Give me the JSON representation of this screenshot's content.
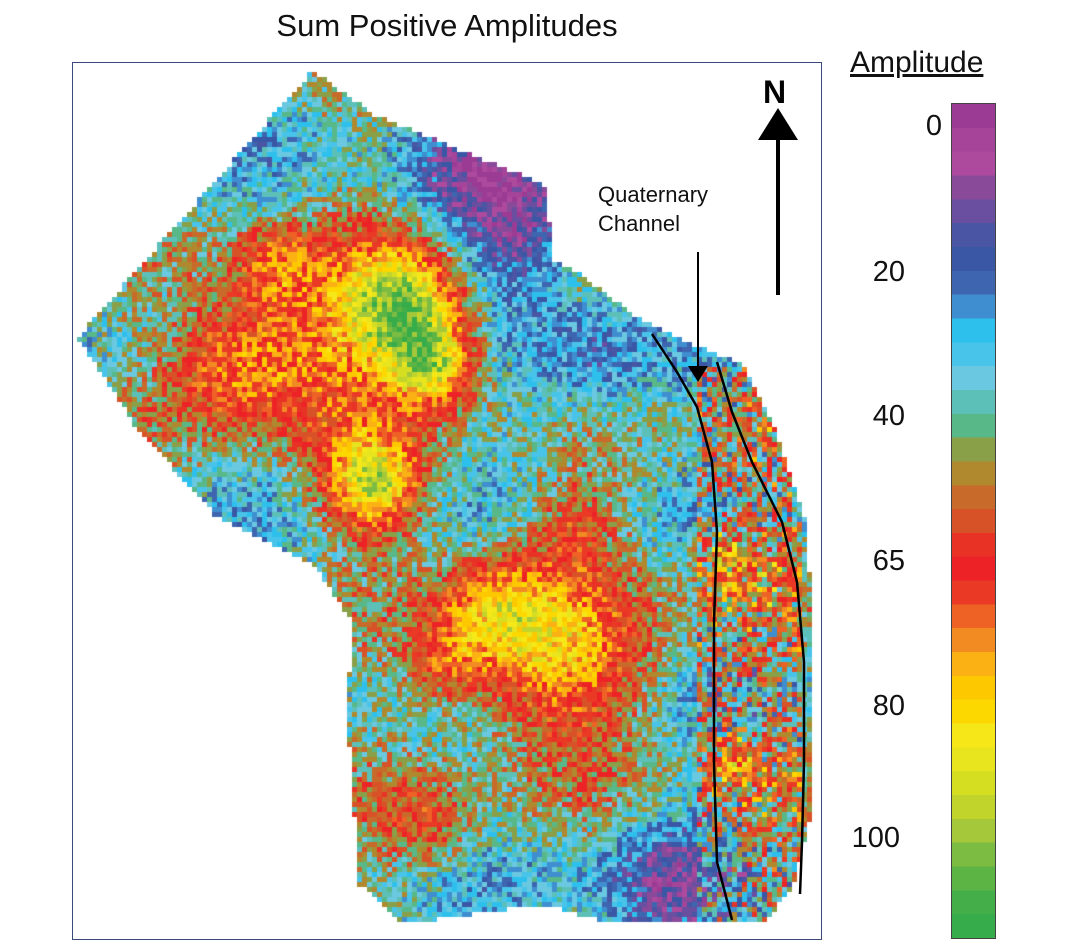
{
  "title": "Sum Positive Amplitudes",
  "north_label": "N",
  "annotation": {
    "line1": "Quaternary",
    "line2": "Channel"
  },
  "legend": {
    "title": "Amplitude",
    "ticks": [
      "0",
      "20",
      "40",
      "65",
      "80",
      "100"
    ],
    "colors": [
      "#9b3b94",
      "#a6449a",
      "#ad4a9e",
      "#8a4a9a",
      "#6a4ea0",
      "#4a55a3",
      "#3a57a6",
      "#3e66b0",
      "#3f8ed0",
      "#2ec0ec",
      "#48c4ea",
      "#6ac8e0",
      "#5cc0b8",
      "#58b888",
      "#8aa048",
      "#b0882e",
      "#c86a2a",
      "#d85228",
      "#e83226",
      "#ec2226",
      "#ea3a26",
      "#ee6226",
      "#f28c22",
      "#fbb014",
      "#fdc800",
      "#fdd800",
      "#f6e818",
      "#e8e41e",
      "#d6de22",
      "#c0d42c",
      "#a4c83a",
      "#7cbc42",
      "#5cb444",
      "#44ae48",
      "#36ac4a"
    ]
  },
  "chart_data": {
    "type": "heatmap",
    "title": "Sum Positive Amplitudes",
    "colorbar_label": "Amplitude",
    "colorbar_ticks": [
      0,
      20,
      40,
      65,
      80,
      100
    ],
    "colorbar_range": [
      0,
      110
    ],
    "annotations": [
      "Quaternary Channel",
      "N"
    ]
  }
}
